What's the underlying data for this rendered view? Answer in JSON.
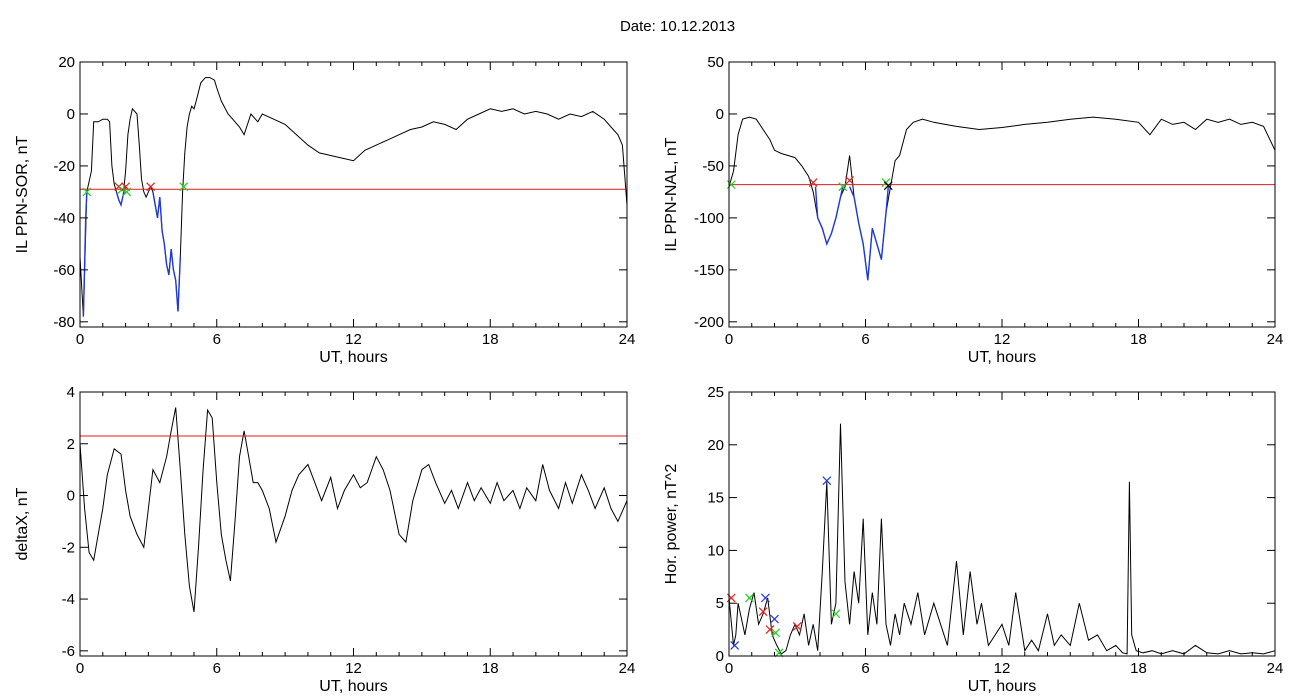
{
  "figure": {
    "title": "Date:  10.12.2013"
  },
  "chart_data": [
    {
      "type": "line",
      "id": "panel-il-sor",
      "xlabel": "UT, hours",
      "ylabel": "IL PPN-SOR, nT",
      "xlim": [
        0,
        24
      ],
      "ylim": [
        -82,
        20
      ],
      "xticks": [
        0,
        6,
        12,
        18,
        24
      ],
      "yticks": [
        -80,
        -60,
        -40,
        -20,
        0,
        20
      ],
      "threshold": -29,
      "series": [
        {
          "color": "#000000",
          "x": [
            0,
            0.15,
            0.3,
            0.5,
            0.6,
            0.8,
            1.0,
            1.2,
            1.3,
            1.4,
            1.5,
            1.6,
            1.7,
            1.8,
            1.9,
            2.0,
            2.1,
            2.2,
            2.3,
            2.5,
            2.6,
            2.7,
            2.8,
            2.9,
            3.0,
            3.1,
            3.2,
            3.3,
            3.4,
            3.5,
            3.6,
            3.7,
            3.8,
            3.9,
            4.0,
            4.1,
            4.2,
            4.3,
            4.4,
            4.5,
            4.6,
            4.7,
            4.8,
            4.9,
            5.0,
            5.1,
            5.3,
            5.5,
            5.7,
            5.9,
            6.0,
            6.2,
            6.5,
            6.7,
            7.0,
            7.2,
            7.5,
            7.8,
            8.0,
            8.5,
            9.0,
            9.5,
            10.0,
            10.5,
            11.0,
            11.5,
            12.0,
            12.5,
            13.0,
            13.5,
            14.0,
            14.5,
            15.0,
            15.5,
            16.0,
            16.5,
            17.0,
            17.5,
            18.0,
            18.5,
            19.0,
            19.5,
            20.0,
            20.5,
            21.0,
            21.5,
            22.0,
            22.5,
            23.0,
            23.3,
            23.6,
            23.8,
            24.0
          ],
          "y": [
            -55,
            -78,
            -30,
            -22,
            -3,
            -3,
            -2,
            -2,
            -3,
            -20,
            -27,
            -30,
            -33,
            -35,
            -31,
            -22,
            -8,
            -2,
            2,
            0,
            -12,
            -25,
            -30,
            -32,
            -30,
            -28,
            -30,
            -35,
            -40,
            -32,
            -45,
            -50,
            -58,
            -62,
            -52,
            -60,
            -64,
            -76,
            -55,
            -30,
            -15,
            -5,
            0,
            3,
            2,
            5,
            12,
            14,
            14,
            13,
            10,
            5,
            0,
            -2,
            -5,
            -8,
            0,
            -3,
            0,
            -2,
            -4,
            -8,
            -12,
            -15,
            -16,
            -17,
            -18,
            -14,
            -12,
            -10,
            -8,
            -6,
            -5,
            -3,
            -4,
            -6,
            -2,
            0,
            2,
            1,
            2,
            0,
            1,
            0,
            -2,
            0,
            -1,
            1,
            -2,
            -5,
            -8,
            -12,
            -35
          ]
        },
        {
          "color": "#1f3ad6",
          "x": [
            0.15,
            0.25,
            0.3
          ],
          "y": [
            -78,
            -40,
            -30
          ]
        },
        {
          "color": "#1f3ad6",
          "x": [
            1.6,
            1.7,
            1.8,
            1.9,
            2.0
          ],
          "y": [
            -30,
            -33,
            -35,
            -31,
            -28
          ]
        },
        {
          "color": "#1f3ad6",
          "x": [
            3.2,
            3.3,
            3.4,
            3.5,
            3.6,
            3.7,
            3.8,
            3.9,
            4.0,
            4.1,
            4.2,
            4.3,
            4.4
          ],
          "y": [
            -30,
            -35,
            -40,
            -32,
            -45,
            -50,
            -58,
            -62,
            -52,
            -60,
            -64,
            -76,
            -55
          ]
        }
      ],
      "markers": [
        {
          "x": 0.3,
          "y": -30,
          "color": "#22cc22"
        },
        {
          "x": 1.7,
          "y": -28,
          "color": "#dd2222"
        },
        {
          "x": 1.85,
          "y": -29,
          "color": "#22cc22"
        },
        {
          "x": 2.0,
          "y": -28,
          "color": "#dd2222"
        },
        {
          "x": 2.05,
          "y": -30,
          "color": "#22cc22"
        },
        {
          "x": 3.1,
          "y": -28,
          "color": "#dd2222"
        },
        {
          "x": 4.55,
          "y": -28,
          "color": "#22cc22"
        }
      ]
    },
    {
      "type": "line",
      "id": "panel-il-nal",
      "xlabel": "UT, hours",
      "ylabel": "IL PPN-NAL, nT",
      "xlim": [
        0,
        24
      ],
      "ylim": [
        -205,
        50
      ],
      "xticks": [
        0,
        6,
        12,
        18,
        24
      ],
      "yticks": [
        -200,
        -150,
        -100,
        -50,
        0,
        50
      ],
      "threshold": -68,
      "series": [
        {
          "color": "#000000",
          "x": [
            0,
            0.2,
            0.4,
            0.6,
            0.9,
            1.2,
            1.5,
            1.8,
            2.0,
            2.3,
            2.6,
            2.9,
            3.2,
            3.5,
            3.7,
            3.9,
            4.1,
            4.3,
            4.5,
            4.7,
            4.9,
            5.1,
            5.3,
            5.5,
            5.7,
            5.9,
            6.1,
            6.3,
            6.5,
            6.7,
            6.9,
            7.1,
            7.3,
            7.5,
            7.8,
            8.1,
            8.5,
            9.0,
            9.5,
            10,
            11,
            12,
            13,
            14,
            15,
            16,
            17,
            18,
            18.5,
            19,
            19.5,
            20,
            20.5,
            21,
            21.5,
            22,
            22.5,
            23,
            23.5,
            24
          ],
          "y": [
            -70,
            -55,
            -20,
            -5,
            -3,
            -5,
            -15,
            -25,
            -35,
            -38,
            -40,
            -42,
            -50,
            -60,
            -75,
            -100,
            -110,
            -125,
            -115,
            -100,
            -80,
            -70,
            -40,
            -80,
            -105,
            -125,
            -160,
            -110,
            -125,
            -140,
            -95,
            -70,
            -45,
            -40,
            -15,
            -8,
            -5,
            -8,
            -10,
            -12,
            -15,
            -13,
            -10,
            -8,
            -5,
            -3,
            -5,
            -8,
            -20,
            -5,
            -10,
            -8,
            -15,
            -5,
            -8,
            -5,
            -10,
            -8,
            -12,
            -35
          ]
        },
        {
          "color": "#1f3ad6",
          "x": [
            3.8,
            3.9,
            4.1,
            4.3,
            4.5,
            4.7,
            4.9,
            5.0
          ],
          "y": [
            -70,
            -100,
            -110,
            -125,
            -115,
            -100,
            -80,
            -70
          ]
        },
        {
          "color": "#1f3ad6",
          "x": [
            5.3,
            5.5,
            5.7,
            5.9,
            6.1,
            6.3,
            6.5,
            6.7,
            6.9,
            7.0
          ],
          "y": [
            -70,
            -80,
            -105,
            -125,
            -160,
            -110,
            -125,
            -140,
            -95,
            -70
          ]
        }
      ],
      "markers": [
        {
          "x": 0.1,
          "y": -68,
          "color": "#22cc22"
        },
        {
          "x": 3.7,
          "y": -66,
          "color": "#dd2222"
        },
        {
          "x": 5.0,
          "y": -70,
          "color": "#22cc22"
        },
        {
          "x": 5.3,
          "y": -64,
          "color": "#dd2222"
        },
        {
          "x": 6.9,
          "y": -66,
          "color": "#22cc22"
        },
        {
          "x": 7.0,
          "y": -69,
          "color": "#000000"
        }
      ]
    },
    {
      "type": "line",
      "id": "panel-deltax",
      "xlabel": "UT, hours",
      "ylabel": "deltaX, nT",
      "xlim": [
        0,
        24
      ],
      "ylim": [
        -6.2,
        4
      ],
      "xticks": [
        0,
        6,
        12,
        18,
        24
      ],
      "yticks": [
        -6,
        -4,
        -2,
        0,
        2,
        4
      ],
      "threshold": 2.3,
      "series": [
        {
          "color": "#000000",
          "x": [
            0,
            0.2,
            0.4,
            0.6,
            0.8,
            1.0,
            1.2,
            1.5,
            1.8,
            2.0,
            2.2,
            2.5,
            2.8,
            3.0,
            3.2,
            3.5,
            3.8,
            4.0,
            4.2,
            4.4,
            4.6,
            4.8,
            5.0,
            5.2,
            5.4,
            5.6,
            5.8,
            6.0,
            6.2,
            6.4,
            6.6,
            6.8,
            7.0,
            7.2,
            7.4,
            7.6,
            7.8,
            8.0,
            8.3,
            8.6,
            9.0,
            9.3,
            9.6,
            10.0,
            10.3,
            10.6,
            11.0,
            11.3,
            11.6,
            12.0,
            12.3,
            12.6,
            13.0,
            13.3,
            13.6,
            14.0,
            14.3,
            14.6,
            15.0,
            15.3,
            15.6,
            16.0,
            16.3,
            16.6,
            17.0,
            17.3,
            17.6,
            18.0,
            18.3,
            18.6,
            19.0,
            19.3,
            19.6,
            20.0,
            20.3,
            20.6,
            21.0,
            21.3,
            21.6,
            22.0,
            22.3,
            22.6,
            23.0,
            23.3,
            23.6,
            24.0
          ],
          "y": [
            2.0,
            -0.5,
            -2.2,
            -2.5,
            -1.5,
            -0.5,
            0.8,
            1.8,
            1.6,
            0.2,
            -0.8,
            -1.5,
            -2.0,
            -0.5,
            1.0,
            0.5,
            1.5,
            2.5,
            3.4,
            1.0,
            -1.5,
            -3.5,
            -4.5,
            -2.0,
            1.0,
            3.3,
            3.0,
            0.5,
            -1.5,
            -2.5,
            -3.3,
            -1.0,
            1.5,
            2.5,
            1.5,
            0.5,
            0.5,
            0.2,
            -0.5,
            -1.8,
            -0.8,
            0.2,
            0.8,
            1.2,
            0.5,
            -0.2,
            0.7,
            -0.5,
            0.2,
            0.8,
            0.3,
            0.5,
            1.5,
            1.0,
            0.2,
            -1.5,
            -1.8,
            -0.2,
            1.0,
            1.2,
            0.5,
            -0.3,
            0.2,
            -0.5,
            0.5,
            -0.2,
            0.3,
            -0.3,
            0.5,
            -0.2,
            0.2,
            -0.5,
            0.3,
            -0.2,
            1.2,
            0.2,
            -0.5,
            0.5,
            -0.3,
            0.8,
            0.2,
            -0.5,
            0.3,
            -0.5,
            -1.0,
            -0.2
          ]
        }
      ],
      "markers": []
    },
    {
      "type": "line",
      "id": "panel-hor-power",
      "xlabel": "UT, hours",
      "ylabel": "Hor. power, nT^2",
      "xlim": [
        0,
        24
      ],
      "ylim": [
        0,
        25
      ],
      "xticks": [
        0,
        6,
        12,
        18,
        24
      ],
      "yticks": [
        0,
        5,
        10,
        15,
        20,
        25
      ],
      "threshold": 25,
      "series": [
        {
          "color": "#000000",
          "x": [
            0,
            0.2,
            0.3,
            0.4,
            0.5,
            0.7,
            0.9,
            1.1,
            1.3,
            1.5,
            1.7,
            1.9,
            2.1,
            2.3,
            2.5,
            2.7,
            2.9,
            3.1,
            3.3,
            3.5,
            3.7,
            3.9,
            4.1,
            4.3,
            4.5,
            4.7,
            4.9,
            5.1,
            5.3,
            5.5,
            5.7,
            5.9,
            6.1,
            6.3,
            6.5,
            6.7,
            6.9,
            7.1,
            7.3,
            7.5,
            7.7,
            8.0,
            8.3,
            8.6,
            9.0,
            9.3,
            9.6,
            10.0,
            10.3,
            10.6,
            10.9,
            11.1,
            11.4,
            11.7,
            12.0,
            12.3,
            12.6,
            13.0,
            13.3,
            13.6,
            14.0,
            14.3,
            14.6,
            15.0,
            15.4,
            15.8,
            16.2,
            16.6,
            17.0,
            17.3,
            17.5,
            17.6,
            17.7,
            17.9,
            18.2,
            18.6,
            19.0,
            19.5,
            20.0,
            20.5,
            21.0,
            21.5,
            22.0,
            22.5,
            23.0,
            23.5,
            24.0
          ],
          "y": [
            5.5,
            1.0,
            2.0,
            5.0,
            4.0,
            2.0,
            4.5,
            6.0,
            3.0,
            4.0,
            5.5,
            2.0,
            1.0,
            0.2,
            0.5,
            2.0,
            3.0,
            2.0,
            4.0,
            1.0,
            3.0,
            0.5,
            8.0,
            16.5,
            3.0,
            5.0,
            22.0,
            7.0,
            3.0,
            8.0,
            5.0,
            13.0,
            2.0,
            6.0,
            3.0,
            13.0,
            3.0,
            1.0,
            4.0,
            2.0,
            5.0,
            3.0,
            6.0,
            2.0,
            5.0,
            3.0,
            1.0,
            9.0,
            2.0,
            8.0,
            3.0,
            5.0,
            1.0,
            2.0,
            3.0,
            1.0,
            6.0,
            0.5,
            1.5,
            0.5,
            4.0,
            1.0,
            2.0,
            1.0,
            5.0,
            1.5,
            2.0,
            0.5,
            1.0,
            0.3,
            0.2,
            16.5,
            2.0,
            0.5,
            0.3,
            0.5,
            0.2,
            0.5,
            0.2,
            1.0,
            0.3,
            0.2,
            0.5,
            0.2,
            0.3,
            0.2,
            0.5
          ]
        }
      ],
      "markers": [
        {
          "x": 0.1,
          "y": 5.5,
          "color": "#dd2222"
        },
        {
          "x": 0.25,
          "y": 1.0,
          "color": "#1f3ad6"
        },
        {
          "x": 0.9,
          "y": 5.5,
          "color": "#22cc22"
        },
        {
          "x": 1.5,
          "y": 4.2,
          "color": "#dd2222"
        },
        {
          "x": 1.6,
          "y": 5.5,
          "color": "#1f3ad6"
        },
        {
          "x": 1.8,
          "y": 2.5,
          "color": "#dd2222"
        },
        {
          "x": 2.0,
          "y": 3.5,
          "color": "#1f3ad6"
        },
        {
          "x": 2.05,
          "y": 2.2,
          "color": "#22cc22"
        },
        {
          "x": 2.2,
          "y": 0.3,
          "color": "#22cc22"
        },
        {
          "x": 3.0,
          "y": 2.8,
          "color": "#dd2222"
        },
        {
          "x": 4.3,
          "y": 16.6,
          "color": "#1f3ad6"
        },
        {
          "x": 4.7,
          "y": 4.0,
          "color": "#22cc22"
        }
      ]
    }
  ]
}
